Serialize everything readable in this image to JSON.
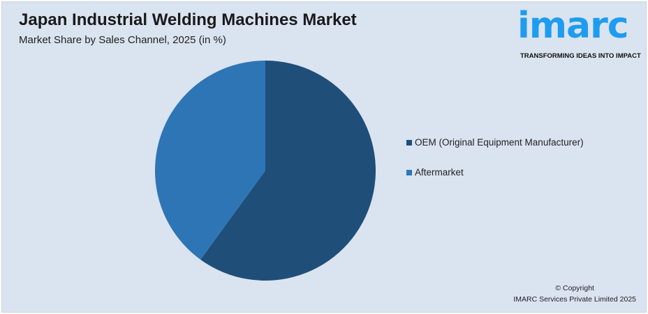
{
  "header": {
    "title": "Japan Industrial Welding Machines Market",
    "subtitle": "Market Share by Sales Channel, 2025 (in %)"
  },
  "logo": {
    "word": "imarc",
    "tagline": "TRANSFORMING IDEAS INTO IMPACT"
  },
  "chart_data": {
    "type": "pie",
    "title": "Japan Industrial Welding Machines Market",
    "subtitle": "Market Share by Sales Channel, 2025 (in %)",
    "categories": [
      "OEM (Original Equipment Manufacturer)",
      "Aftermarket"
    ],
    "values": [
      60,
      40
    ],
    "colors": [
      "#1f4e79",
      "#2e75b6"
    ],
    "legend_position": "right"
  },
  "footer": {
    "copyright": "© Copyright",
    "company": "IMARC Services Private Limited 2025"
  }
}
